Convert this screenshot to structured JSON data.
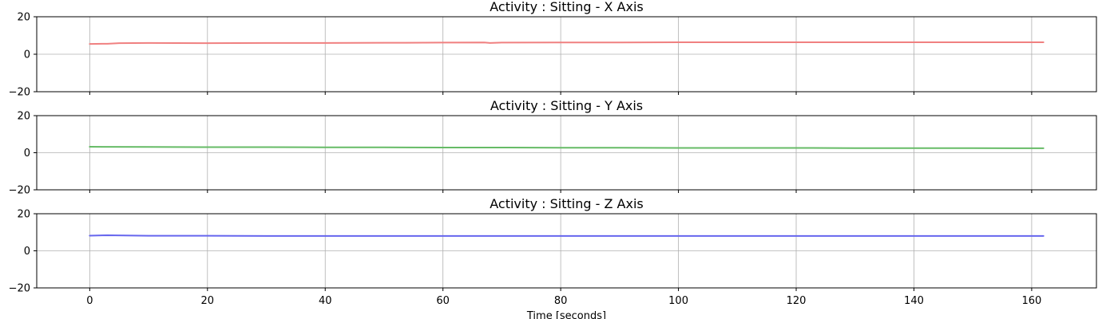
{
  "chart_data": [
    {
      "type": "line",
      "title": "Activity : Sitting - X Axis",
      "xlim": [
        -9,
        171
      ],
      "ylim": [
        -20,
        20
      ],
      "yticks": [
        20,
        0,
        -20
      ],
      "xticks": [
        0,
        20,
        40,
        60,
        80,
        100,
        120,
        140,
        160
      ],
      "grid": true,
      "series": [
        {
          "color": "#f08080",
          "x": [
            0,
            3,
            5,
            10,
            20,
            30,
            40,
            50,
            60,
            67,
            68,
            70,
            80,
            90,
            100,
            110,
            120,
            130,
            140,
            150,
            162
          ],
          "y": [
            5.5,
            5.6,
            5.9,
            6.0,
            5.9,
            6.0,
            6.0,
            6.1,
            6.2,
            6.3,
            6.0,
            6.2,
            6.3,
            6.3,
            6.4,
            6.4,
            6.4,
            6.4,
            6.4,
            6.4,
            6.4
          ]
        }
      ]
    },
    {
      "type": "line",
      "title": "Activity : Sitting - Y Axis",
      "xlim": [
        -9,
        171
      ],
      "ylim": [
        -20,
        20
      ],
      "yticks": [
        20,
        0,
        -20
      ],
      "xticks": [
        0,
        20,
        40,
        60,
        80,
        100,
        120,
        140,
        160
      ],
      "grid": true,
      "series": [
        {
          "color": "#66bb66",
          "x": [
            0,
            10,
            20,
            30,
            40,
            50,
            60,
            70,
            80,
            90,
            100,
            110,
            120,
            130,
            140,
            150,
            162
          ],
          "y": [
            3.2,
            3.1,
            3.0,
            3.0,
            2.9,
            2.9,
            2.8,
            2.8,
            2.7,
            2.7,
            2.6,
            2.6,
            2.6,
            2.5,
            2.5,
            2.5,
            2.4
          ]
        }
      ]
    },
    {
      "type": "line",
      "title": "Activity : Sitting - Z Axis",
      "xlim": [
        -9,
        171
      ],
      "ylim": [
        -20,
        20
      ],
      "yticks": [
        20,
        0,
        -20
      ],
      "xticks": [
        0,
        20,
        40,
        60,
        80,
        100,
        120,
        140,
        160
      ],
      "grid": true,
      "xlabel": "Time [seconds]",
      "series": [
        {
          "color": "#6666ee",
          "x": [
            0,
            3,
            10,
            20,
            30,
            40,
            50,
            60,
            70,
            80,
            90,
            100,
            110,
            120,
            130,
            140,
            150,
            162
          ],
          "y": [
            8.2,
            8.4,
            8.1,
            8.1,
            8.0,
            8.0,
            8.0,
            8.0,
            8.0,
            8.0,
            8.0,
            8.0,
            8.0,
            8.0,
            8.0,
            8.0,
            8.0,
            8.0
          ]
        }
      ]
    }
  ]
}
